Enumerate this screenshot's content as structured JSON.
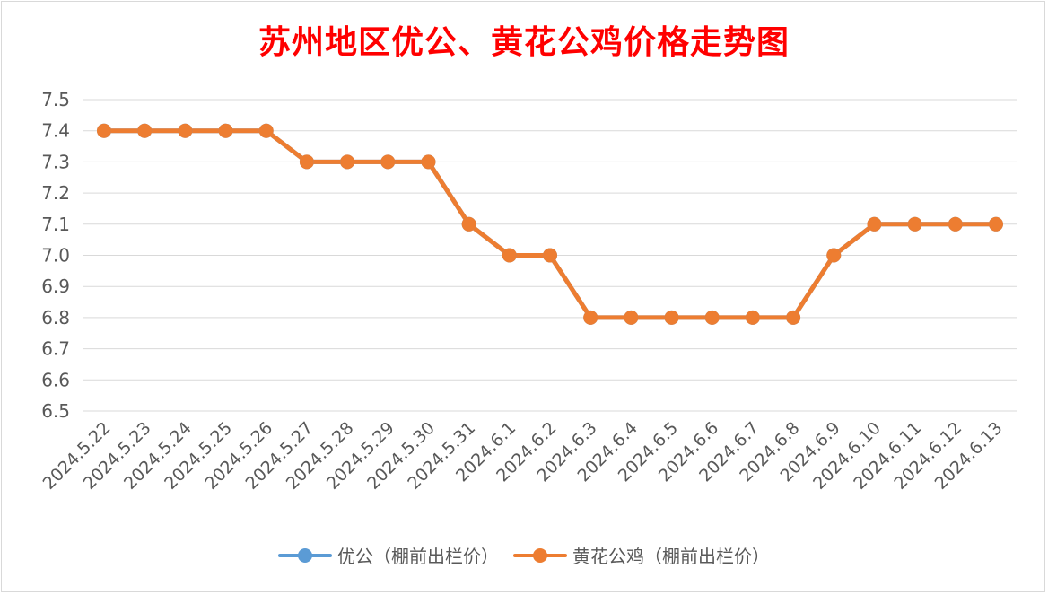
{
  "chart_data": {
    "type": "line",
    "title": "苏州地区优公、黄花公鸡价格走势图",
    "xlabel": "",
    "ylabel": "",
    "ylim": [
      6.5,
      7.5
    ],
    "y_ticks": [
      "7.5",
      "7.4",
      "7.3",
      "7.2",
      "7.1",
      "7.0",
      "6.9",
      "6.8",
      "6.7",
      "6.6",
      "6.5"
    ],
    "grid": true,
    "legend_position": "bottom",
    "categories": [
      "2024.5.22",
      "2024.5.23",
      "2024.5.24",
      "2024.5.25",
      "2024.5.26",
      "2024.5.27",
      "2024.5.28",
      "2024.5.29",
      "2024.5.30",
      "2024.5.31",
      "2024.6.1",
      "2024.6.2",
      "2024.6.3",
      "2024.6.4",
      "2024.6.5",
      "2024.6.6",
      "2024.6.7",
      "2024.6.8",
      "2024.6.9",
      "2024.6.10",
      "2024.6.11",
      "2024.6.12",
      "2024.6.13"
    ],
    "series": [
      {
        "name": "优公（棚前出栏价）",
        "color": "#5b9bd5",
        "values": [
          7.4,
          7.4,
          7.4,
          7.4,
          7.4,
          7.3,
          7.3,
          7.3,
          7.3,
          7.1,
          7.0,
          7.0,
          6.8,
          6.8,
          6.8,
          6.8,
          6.8,
          6.8,
          7.0,
          7.1,
          7.1,
          7.1,
          7.1
        ]
      },
      {
        "name": "黄花公鸡（棚前出栏价）",
        "color": "#ed7d31",
        "values": [
          7.4,
          7.4,
          7.4,
          7.4,
          7.4,
          7.3,
          7.3,
          7.3,
          7.3,
          7.1,
          7.0,
          7.0,
          6.8,
          6.8,
          6.8,
          6.8,
          6.8,
          6.8,
          7.0,
          7.1,
          7.1,
          7.1,
          7.1
        ]
      }
    ]
  }
}
